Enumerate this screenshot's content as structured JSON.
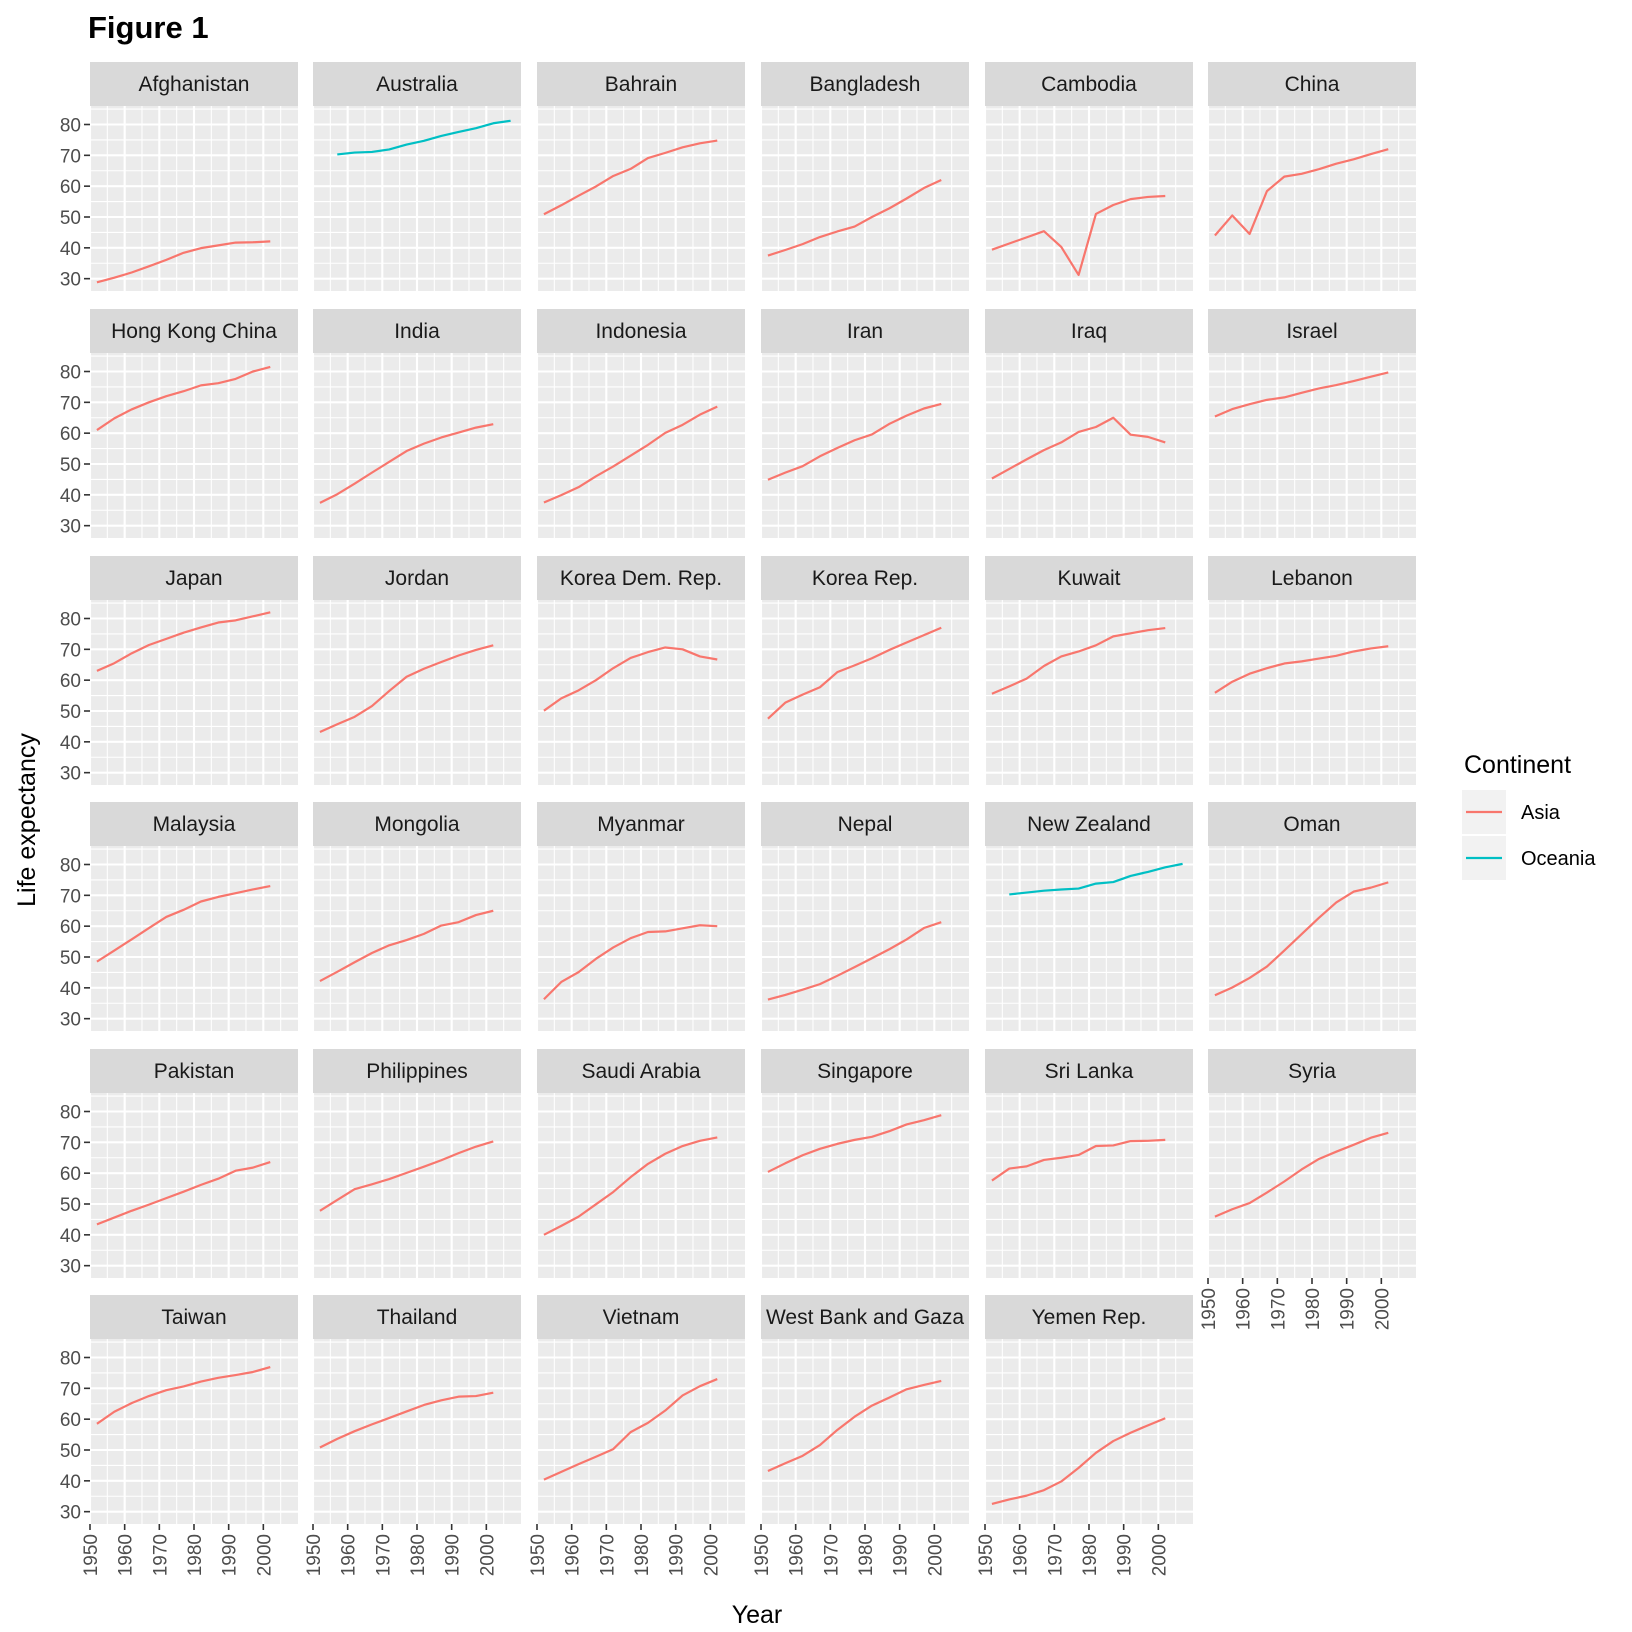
{
  "chart_data": {
    "type": "line",
    "title": "Figure 1",
    "xlabel": "Year",
    "ylabel": "Life expectancy",
    "xlim": [
      1950,
      2010
    ],
    "ylim": [
      26,
      86
    ],
    "x_ticks": [
      1950,
      1960,
      1970,
      1980,
      1990,
      2000
    ],
    "y_ticks": [
      30,
      40,
      50,
      60,
      70,
      80
    ],
    "grid": true,
    "legend": {
      "title": "Continent",
      "position": "right",
      "entries": [
        {
          "name": "Asia",
          "color": "#F8766D"
        },
        {
          "name": "Oceania",
          "color": "#00BFC4"
        }
      ]
    },
    "panels": [
      {
        "name": "Afghanistan",
        "continent": "Asia",
        "x": [
          1952,
          1957,
          1962,
          1967,
          1972,
          1977,
          1982,
          1987,
          1992,
          1997,
          2002
        ],
        "values": [
          28.8,
          30.3,
          32.0,
          34.0,
          36.1,
          38.4,
          39.9,
          40.8,
          41.7,
          41.8,
          42.1
        ]
      },
      {
        "name": "Australia",
        "continent": "Oceania",
        "x": [
          1957,
          1962,
          1967,
          1972,
          1977,
          1982,
          1987,
          1992,
          1997,
          2002,
          2007
        ],
        "values": [
          70.3,
          70.9,
          71.1,
          71.9,
          73.5,
          74.7,
          76.3,
          77.6,
          78.8,
          80.4,
          81.2
        ]
      },
      {
        "name": "Bahrain",
        "continent": "Asia",
        "x": [
          1952,
          1957,
          1962,
          1967,
          1972,
          1977,
          1982,
          1987,
          1992,
          1997,
          2002
        ],
        "values": [
          50.9,
          53.8,
          56.9,
          59.9,
          63.3,
          65.6,
          69.1,
          70.8,
          72.6,
          73.9,
          74.8
        ]
      },
      {
        "name": "Bangladesh",
        "continent": "Asia",
        "x": [
          1952,
          1957,
          1962,
          1967,
          1972,
          1977,
          1982,
          1987,
          1992,
          1997,
          2002
        ],
        "values": [
          37.5,
          39.3,
          41.2,
          43.5,
          45.3,
          46.9,
          50.0,
          52.8,
          56.0,
          59.4,
          62.0
        ]
      },
      {
        "name": "Cambodia",
        "continent": "Asia",
        "x": [
          1952,
          1957,
          1962,
          1967,
          1972,
          1977,
          1982,
          1987,
          1992,
          1997,
          2002
        ],
        "values": [
          39.4,
          41.4,
          43.4,
          45.4,
          40.3,
          31.2,
          51.0,
          53.9,
          55.8,
          56.5,
          56.8
        ]
      },
      {
        "name": "China",
        "continent": "Asia",
        "x": [
          1952,
          1957,
          1962,
          1967,
          1972,
          1977,
          1982,
          1987,
          1992,
          1997,
          2002
        ],
        "values": [
          44.0,
          50.5,
          44.5,
          58.4,
          63.1,
          64.0,
          65.5,
          67.3,
          68.7,
          70.4,
          72.0
        ]
      },
      {
        "name": "Hong Kong China",
        "continent": "Asia",
        "x": [
          1952,
          1957,
          1962,
          1967,
          1972,
          1977,
          1982,
          1987,
          1992,
          1997,
          2002
        ],
        "values": [
          61.0,
          64.8,
          67.7,
          70.0,
          72.0,
          73.6,
          75.5,
          76.2,
          77.6,
          80.0,
          81.5
        ]
      },
      {
        "name": "India",
        "continent": "Asia",
        "x": [
          1952,
          1957,
          1962,
          1967,
          1972,
          1977,
          1982,
          1987,
          1992,
          1997,
          2002
        ],
        "values": [
          37.4,
          40.2,
          43.6,
          47.2,
          50.7,
          54.2,
          56.6,
          58.6,
          60.2,
          61.8,
          62.9
        ]
      },
      {
        "name": "Indonesia",
        "continent": "Asia",
        "x": [
          1952,
          1957,
          1962,
          1967,
          1972,
          1977,
          1982,
          1987,
          1992,
          1997,
          2002
        ],
        "values": [
          37.5,
          39.9,
          42.5,
          46.0,
          49.2,
          52.7,
          56.2,
          60.1,
          62.7,
          66.0,
          68.6
        ]
      },
      {
        "name": "Iran",
        "continent": "Asia",
        "x": [
          1952,
          1957,
          1962,
          1967,
          1972,
          1977,
          1982,
          1987,
          1992,
          1997,
          2002
        ],
        "values": [
          44.9,
          47.2,
          49.3,
          52.5,
          55.2,
          57.7,
          59.6,
          63.0,
          65.7,
          68.0,
          69.5
        ]
      },
      {
        "name": "Iraq",
        "continent": "Asia",
        "x": [
          1952,
          1957,
          1962,
          1967,
          1972,
          1977,
          1982,
          1987,
          1992,
          1997,
          2002
        ],
        "values": [
          45.3,
          48.4,
          51.5,
          54.5,
          57.0,
          60.4,
          62.0,
          65.0,
          59.5,
          58.8,
          57.0
        ]
      },
      {
        "name": "Israel",
        "continent": "Asia",
        "x": [
          1952,
          1957,
          1962,
          1967,
          1972,
          1977,
          1982,
          1987,
          1992,
          1997,
          2002
        ],
        "values": [
          65.4,
          67.8,
          69.4,
          70.8,
          71.6,
          73.1,
          74.5,
          75.6,
          76.9,
          78.3,
          79.7
        ]
      },
      {
        "name": "Japan",
        "continent": "Asia",
        "x": [
          1952,
          1957,
          1962,
          1967,
          1972,
          1977,
          1982,
          1987,
          1992,
          1997,
          2002
        ],
        "values": [
          63.0,
          65.5,
          68.7,
          71.4,
          73.4,
          75.4,
          77.1,
          78.7,
          79.4,
          80.7,
          82.0
        ]
      },
      {
        "name": "Jordan",
        "continent": "Asia",
        "x": [
          1952,
          1957,
          1962,
          1967,
          1972,
          1977,
          1982,
          1987,
          1992,
          1997,
          2002
        ],
        "values": [
          43.2,
          45.7,
          48.1,
          51.6,
          56.5,
          61.1,
          63.7,
          65.9,
          68.0,
          69.8,
          71.3
        ]
      },
      {
        "name": "Korea Dem. Rep.",
        "continent": "Asia",
        "x": [
          1952,
          1957,
          1962,
          1967,
          1972,
          1977,
          1982,
          1987,
          1992,
          1997,
          2002
        ],
        "values": [
          50.1,
          54.1,
          56.7,
          60.0,
          63.9,
          67.2,
          69.1,
          70.6,
          70.0,
          67.7,
          66.7
        ]
      },
      {
        "name": "Korea Rep.",
        "continent": "Asia",
        "x": [
          1952,
          1957,
          1962,
          1967,
          1972,
          1977,
          1982,
          1987,
          1992,
          1997,
          2002
        ],
        "values": [
          47.5,
          52.7,
          55.3,
          57.7,
          62.6,
          64.8,
          67.1,
          69.8,
          72.2,
          74.6,
          77.0
        ]
      },
      {
        "name": "Kuwait",
        "continent": "Asia",
        "x": [
          1952,
          1957,
          1962,
          1967,
          1972,
          1977,
          1982,
          1987,
          1992,
          1997,
          2002
        ],
        "values": [
          55.6,
          58.0,
          60.5,
          64.6,
          67.7,
          69.3,
          71.3,
          74.2,
          75.2,
          76.2,
          76.9
        ]
      },
      {
        "name": "Lebanon",
        "continent": "Asia",
        "x": [
          1952,
          1957,
          1962,
          1967,
          1972,
          1977,
          1982,
          1987,
          1992,
          1997,
          2002
        ],
        "values": [
          55.9,
          59.5,
          62.1,
          63.9,
          65.4,
          66.1,
          67.0,
          67.9,
          69.3,
          70.3,
          71.0
        ]
      },
      {
        "name": "Malaysia",
        "continent": "Asia",
        "x": [
          1952,
          1957,
          1962,
          1967,
          1972,
          1977,
          1982,
          1987,
          1992,
          1997,
          2002
        ],
        "values": [
          48.5,
          52.1,
          55.7,
          59.4,
          63.0,
          65.3,
          68.0,
          69.5,
          70.7,
          71.9,
          73.0
        ]
      },
      {
        "name": "Mongolia",
        "continent": "Asia",
        "x": [
          1952,
          1957,
          1962,
          1967,
          1972,
          1977,
          1982,
          1987,
          1992,
          1997,
          2002
        ],
        "values": [
          42.2,
          45.2,
          48.3,
          51.3,
          53.8,
          55.5,
          57.5,
          60.2,
          61.3,
          63.6,
          65.0
        ]
      },
      {
        "name": "Myanmar",
        "continent": "Asia",
        "x": [
          1952,
          1957,
          1962,
          1967,
          1972,
          1977,
          1982,
          1987,
          1992,
          1997,
          2002
        ],
        "values": [
          36.3,
          41.9,
          45.1,
          49.4,
          53.1,
          56.1,
          58.1,
          58.3,
          59.3,
          60.3,
          60.0
        ]
      },
      {
        "name": "Nepal",
        "continent": "Asia",
        "x": [
          1952,
          1957,
          1962,
          1967,
          1972,
          1977,
          1982,
          1987,
          1992,
          1997,
          2002
        ],
        "values": [
          36.2,
          37.7,
          39.4,
          41.2,
          43.9,
          46.7,
          49.6,
          52.5,
          55.7,
          59.4,
          61.3
        ]
      },
      {
        "name": "New Zealand",
        "continent": "Oceania",
        "x": [
          1957,
          1962,
          1967,
          1972,
          1977,
          1982,
          1987,
          1992,
          1997,
          2002,
          2007
        ],
        "values": [
          70.3,
          70.9,
          71.5,
          71.9,
          72.2,
          73.8,
          74.3,
          76.3,
          77.6,
          79.1,
          80.2
        ]
      },
      {
        "name": "Oman",
        "continent": "Asia",
        "x": [
          1952,
          1957,
          1962,
          1967,
          1972,
          1977,
          1982,
          1987,
          1992,
          1997,
          2002
        ],
        "values": [
          37.6,
          40.1,
          43.2,
          46.9,
          52.1,
          57.4,
          62.7,
          67.7,
          71.2,
          72.5,
          74.2
        ]
      },
      {
        "name": "Pakistan",
        "continent": "Asia",
        "x": [
          1952,
          1957,
          1962,
          1967,
          1972,
          1977,
          1982,
          1987,
          1992,
          1997,
          2002
        ],
        "values": [
          43.4,
          45.6,
          47.8,
          49.8,
          51.9,
          54.0,
          56.2,
          58.2,
          60.8,
          61.8,
          63.6
        ]
      },
      {
        "name": "Philippines",
        "continent": "Asia",
        "x": [
          1952,
          1957,
          1962,
          1967,
          1972,
          1977,
          1982,
          1987,
          1992,
          1997,
          2002
        ],
        "values": [
          47.8,
          51.3,
          54.8,
          56.4,
          58.1,
          60.1,
          62.1,
          64.2,
          66.5,
          68.6,
          70.3
        ]
      },
      {
        "name": "Saudi Arabia",
        "continent": "Asia",
        "x": [
          1952,
          1957,
          1962,
          1967,
          1972,
          1977,
          1982,
          1987,
          1992,
          1997,
          2002
        ],
        "values": [
          40.0,
          42.9,
          45.9,
          49.9,
          53.9,
          58.7,
          63.0,
          66.3,
          68.8,
          70.5,
          71.6
        ]
      },
      {
        "name": "Singapore",
        "continent": "Asia",
        "x": [
          1952,
          1957,
          1962,
          1967,
          1972,
          1977,
          1982,
          1987,
          1992,
          1997,
          2002
        ],
        "values": [
          60.4,
          63.2,
          65.8,
          67.9,
          69.5,
          70.8,
          71.8,
          73.6,
          75.8,
          77.2,
          78.8
        ]
      },
      {
        "name": "Sri Lanka",
        "continent": "Asia",
        "x": [
          1952,
          1957,
          1962,
          1967,
          1972,
          1977,
          1982,
          1987,
          1992,
          1997,
          2002
        ],
        "values": [
          57.6,
          61.5,
          62.2,
          64.3,
          65.0,
          65.9,
          68.8,
          69.0,
          70.4,
          70.5,
          70.8
        ]
      },
      {
        "name": "Syria",
        "continent": "Asia",
        "x": [
          1952,
          1957,
          1962,
          1967,
          1972,
          1977,
          1982,
          1987,
          1992,
          1997,
          2002
        ],
        "values": [
          45.9,
          48.3,
          50.3,
          53.7,
          57.3,
          61.2,
          64.6,
          66.97,
          69.2,
          71.5,
          73.1
        ]
      },
      {
        "name": "Taiwan",
        "continent": "Asia",
        "x": [
          1952,
          1957,
          1962,
          1967,
          1972,
          1977,
          1982,
          1987,
          1992,
          1997,
          2002
        ],
        "values": [
          58.5,
          62.4,
          65.2,
          67.5,
          69.4,
          70.6,
          72.2,
          73.4,
          74.3,
          75.3,
          76.9
        ]
      },
      {
        "name": "Thailand",
        "continent": "Asia",
        "x": [
          1952,
          1957,
          1962,
          1967,
          1972,
          1977,
          1982,
          1987,
          1992,
          1997,
          2002
        ],
        "values": [
          50.8,
          53.6,
          56.1,
          58.3,
          60.4,
          62.5,
          64.6,
          66.1,
          67.3,
          67.5,
          68.6
        ]
      },
      {
        "name": "Vietnam",
        "continent": "Asia",
        "x": [
          1952,
          1957,
          1962,
          1967,
          1972,
          1977,
          1982,
          1987,
          1992,
          1997,
          2002
        ],
        "values": [
          40.4,
          42.9,
          45.4,
          47.8,
          50.3,
          55.8,
          58.8,
          62.8,
          67.7,
          70.7,
          73.0
        ]
      },
      {
        "name": "West Bank and Gaza",
        "continent": "Asia",
        "x": [
          1952,
          1957,
          1962,
          1967,
          1972,
          1977,
          1982,
          1987,
          1992,
          1997,
          2002
        ],
        "values": [
          43.2,
          45.7,
          48.1,
          51.6,
          56.5,
          60.8,
          64.4,
          67.0,
          69.7,
          71.1,
          72.4
        ]
      },
      {
        "name": "Yemen Rep.",
        "continent": "Asia",
        "x": [
          1952,
          1957,
          1962,
          1967,
          1972,
          1977,
          1982,
          1987,
          1992,
          1997,
          2002
        ],
        "values": [
          32.5,
          33.97,
          35.2,
          36.98,
          39.8,
          44.2,
          49.1,
          52.9,
          55.6,
          58.0,
          60.3
        ]
      }
    ]
  }
}
